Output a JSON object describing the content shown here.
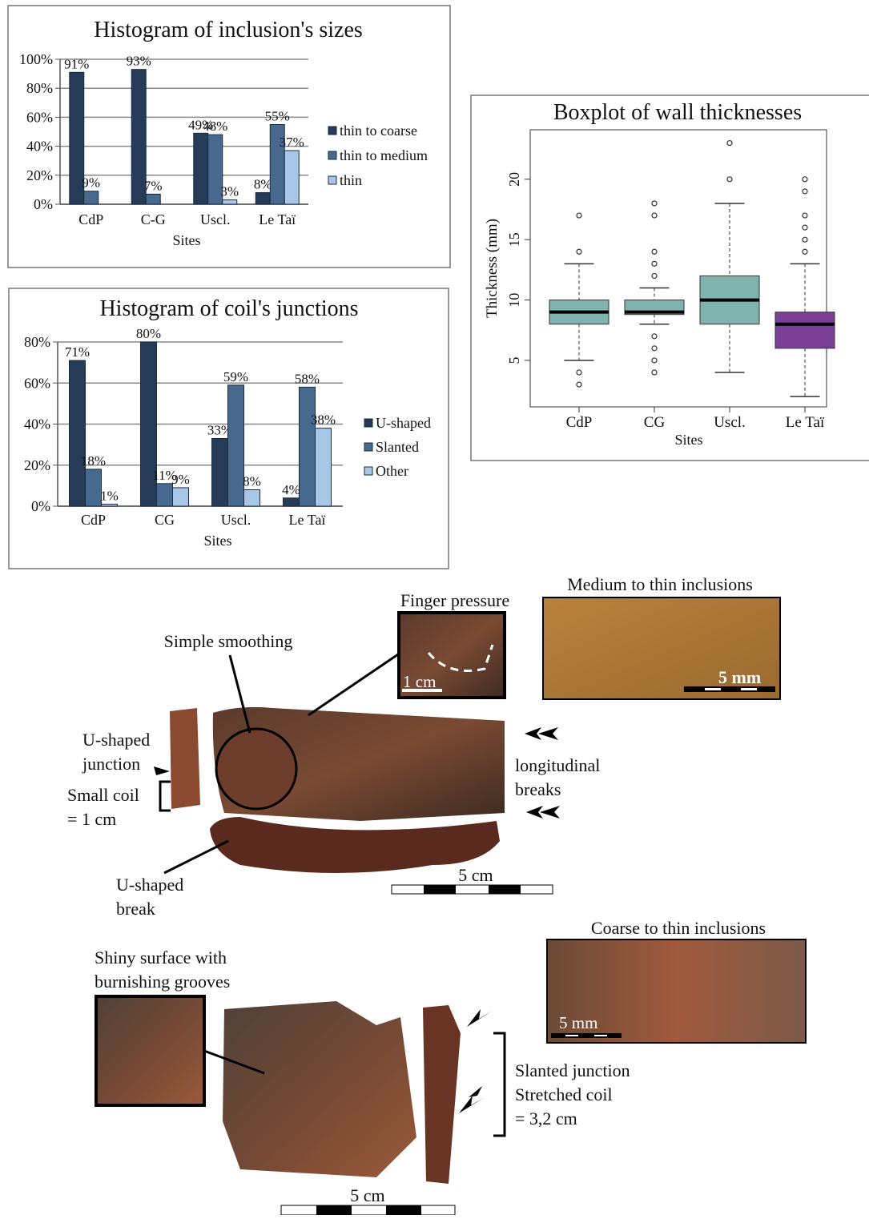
{
  "chart_data": [
    {
      "type": "bar",
      "title": "Histogram of inclusion's sizes",
      "x_label": "Sites",
      "categories": [
        "CdP",
        "C-G",
        "Uscl.",
        "Le Taï"
      ],
      "series": [
        {
          "name": "thin to coarse",
          "color": "#253b57",
          "values": [
            91,
            93,
            49,
            8
          ],
          "value_labels": [
            "91%",
            "93%",
            "49%",
            "8%"
          ]
        },
        {
          "name": "thin to medium",
          "color": "#48698e",
          "values": [
            9,
            7,
            48,
            55
          ],
          "value_labels": [
            "9%",
            "7%",
            "48%",
            "55%"
          ]
        },
        {
          "name": "thin",
          "color": "#a8c7e6",
          "values": [
            null,
            null,
            3,
            37
          ],
          "value_labels": [
            null,
            null,
            "3%",
            "37%"
          ]
        }
      ],
      "ylim": [
        0,
        100
      ],
      "yticks": [
        {
          "value": 0,
          "label": "0%"
        },
        {
          "value": 20,
          "label": "20%"
        },
        {
          "value": 40,
          "label": "40%"
        },
        {
          "value": 60,
          "label": "60%"
        },
        {
          "value": 80,
          "label": "80%"
        },
        {
          "value": 100,
          "label": "100%"
        }
      ],
      "grid": true,
      "legend": "right"
    },
    {
      "type": "bar",
      "title": "Histogram of coil's junctions",
      "x_label": "Sites",
      "categories": [
        "CdP",
        "CG",
        "Uscl.",
        "Le Taï"
      ],
      "series": [
        {
          "name": "U-shaped",
          "color": "#253b57",
          "values": [
            71,
            80,
            33,
            4
          ],
          "value_labels": [
            "71%",
            "80%",
            "33%",
            "4%"
          ]
        },
        {
          "name": "Slanted",
          "color": "#48698e",
          "values": [
            18,
            11,
            59,
            58
          ],
          "value_labels": [
            "18%",
            "11%",
            "59%",
            "58%"
          ]
        },
        {
          "name": "Other",
          "color": "#a8c7e6",
          "values": [
            1,
            9,
            8,
            38
          ],
          "value_labels": [
            "1%",
            "9%",
            "8%",
            "38%"
          ]
        }
      ],
      "ylim": [
        0,
        80
      ],
      "yticks": [
        {
          "value": 0,
          "label": "0%"
        },
        {
          "value": 20,
          "label": "20%"
        },
        {
          "value": 40,
          "label": "40%"
        },
        {
          "value": 60,
          "label": "60%"
        },
        {
          "value": 80,
          "label": "80%"
        }
      ],
      "grid": true,
      "legend": "right"
    },
    {
      "type": "boxplot",
      "title": "Boxplot of wall thicknesses",
      "x_label": "Sites",
      "y_label": "Thickness (mm)",
      "categories": [
        "CdP",
        "CG",
        "Uscl.",
        "Le Taï"
      ],
      "colors": [
        "#7fb4ad",
        "#7fb4ad",
        "#7fb4ad",
        "#7b3f98"
      ],
      "boxes": [
        {
          "whislo": 5,
          "q1": 8,
          "med": 9,
          "q3": 10,
          "whishi": 13,
          "fliers": [
            3,
            4,
            14,
            17
          ]
        },
        {
          "whislo": 8,
          "q1": 8.8,
          "med": 9,
          "q3": 10,
          "whishi": 11,
          "fliers": [
            4,
            5,
            6,
            7,
            12,
            13,
            14,
            17,
            18
          ]
        },
        {
          "whislo": 4,
          "q1": 8,
          "med": 10,
          "q3": 12,
          "whishi": 18,
          "fliers": [
            20,
            23
          ]
        },
        {
          "whislo": 2,
          "q1": 6,
          "med": 8,
          "q3": 9,
          "whishi": 13,
          "fliers": [
            14,
            15,
            16,
            17,
            19,
            20
          ]
        }
      ],
      "ylim": [
        1.15,
        24.1
      ],
      "yticks": [
        5,
        10,
        15,
        20
      ],
      "grid": false
    }
  ],
  "photo_annotations": [
    [
      "Finger pressure"
    ],
    [
      "Medium to thin inclusions"
    ],
    [
      "Simple smoothing"
    ],
    [
      "1 cm"
    ],
    [
      "5 mm"
    ],
    [
      "U-shaped",
      "junction"
    ],
    [
      "Small coil",
      "= 1 cm"
    ],
    [
      "longitudinal",
      "breaks"
    ],
    [
      "U-shaped",
      "break"
    ],
    [
      "5 cm"
    ],
    [
      "Coarse to thin inclusions"
    ],
    [
      "Shiny surface with",
      "burnishing grooves"
    ],
    [
      "5 mm"
    ],
    [
      "Slanted junction",
      "Stretched coil",
      "= 3,2 cm"
    ],
    [
      "5 cm"
    ]
  ]
}
